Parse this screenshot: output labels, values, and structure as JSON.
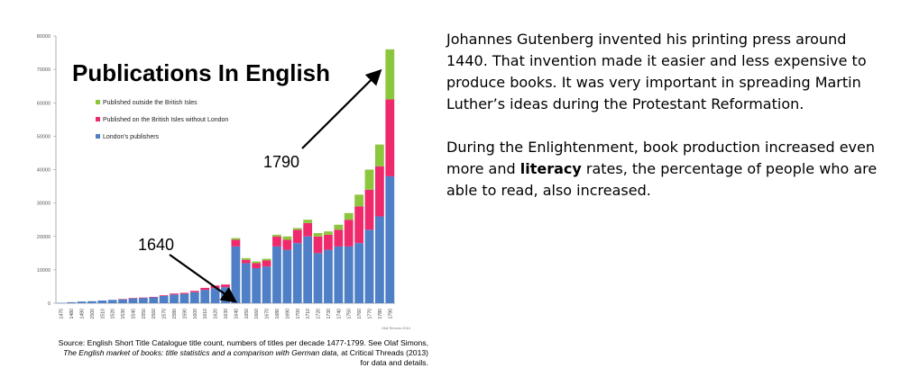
{
  "chart_data": {
    "type": "bar",
    "stacked": true,
    "title": "Publications In English",
    "categories": [
      "1470",
      "1480",
      "1490",
      "1500",
      "1510",
      "1520",
      "1530",
      "1540",
      "1550",
      "1560",
      "1570",
      "1580",
      "1590",
      "1600",
      "1610",
      "1620",
      "1630",
      "1640",
      "1650",
      "1660",
      "1670",
      "1680",
      "1690",
      "1700",
      "1710",
      "1720",
      "1730",
      "1740",
      "1750",
      "1760",
      "1770",
      "1780",
      "1790"
    ],
    "series": [
      {
        "name": "London's publishers",
        "color": "#4f7fc6",
        "values": [
          100,
          300,
          500,
          600,
          800,
          1000,
          1200,
          1500,
          1600,
          1800,
          2200,
          2600,
          2800,
          3300,
          4000,
          4500,
          4800,
          17000,
          12000,
          10500,
          11000,
          17000,
          16000,
          18000,
          20000,
          15000,
          16000,
          17000,
          17000,
          18000,
          22000,
          26000,
          38000
        ]
      },
      {
        "name": "Published on the British Isles without London",
        "color": "#ee2a6d",
        "values": [
          0,
          0,
          0,
          0,
          0,
          0,
          50,
          50,
          100,
          100,
          200,
          300,
          300,
          400,
          600,
          800,
          800,
          2000,
          1000,
          1500,
          1800,
          3000,
          3000,
          4000,
          4000,
          5000,
          4500,
          5000,
          8000,
          11000,
          12000,
          15000,
          23000
        ]
      },
      {
        "name": "Published outside the British Isles",
        "color": "#8cc63f",
        "values": [
          0,
          0,
          0,
          0,
          0,
          0,
          0,
          0,
          0,
          0,
          0,
          0,
          0,
          0,
          0,
          0,
          0,
          500,
          500,
          500,
          500,
          500,
          1000,
          500,
          1000,
          1000,
          1000,
          1500,
          2000,
          3500,
          6000,
          6500,
          15000
        ]
      }
    ],
    "ylim": [
      0,
      80000
    ],
    "yticks": [
      "0",
      "10000",
      "20000",
      "30000",
      "40000",
      "50000",
      "60000",
      "70000",
      "80000"
    ],
    "annotations": [
      {
        "label": "1640",
        "target": "1640"
      },
      {
        "label": "1790",
        "target": "1790"
      }
    ],
    "credit": "Olaf Simons 2014",
    "grid": false,
    "legend": "top-left"
  },
  "caption": {
    "line1": "Source: English Short Title Catalogue title count, numbers of titles per decade 1477-1799. See Olaf Simons,",
    "line2_italic": "The English market of books: title statistics and a comparison with German data",
    "line2_rest": ", at Critical Threads (2013)",
    "line3": "for data and details."
  },
  "text": {
    "p1": "Johannes Gutenberg invented his printing press around 1440. That invention made it easier and less expensive to produce books. It was very important in spreading Martin Luther’s ideas during the Protestant Reformation.",
    "p2_before": "During the Enlightenment, book production increased even more and ",
    "p2_bold": "literacy",
    "p2_after": " rates, the percentage of people who are able to read, also increased."
  }
}
